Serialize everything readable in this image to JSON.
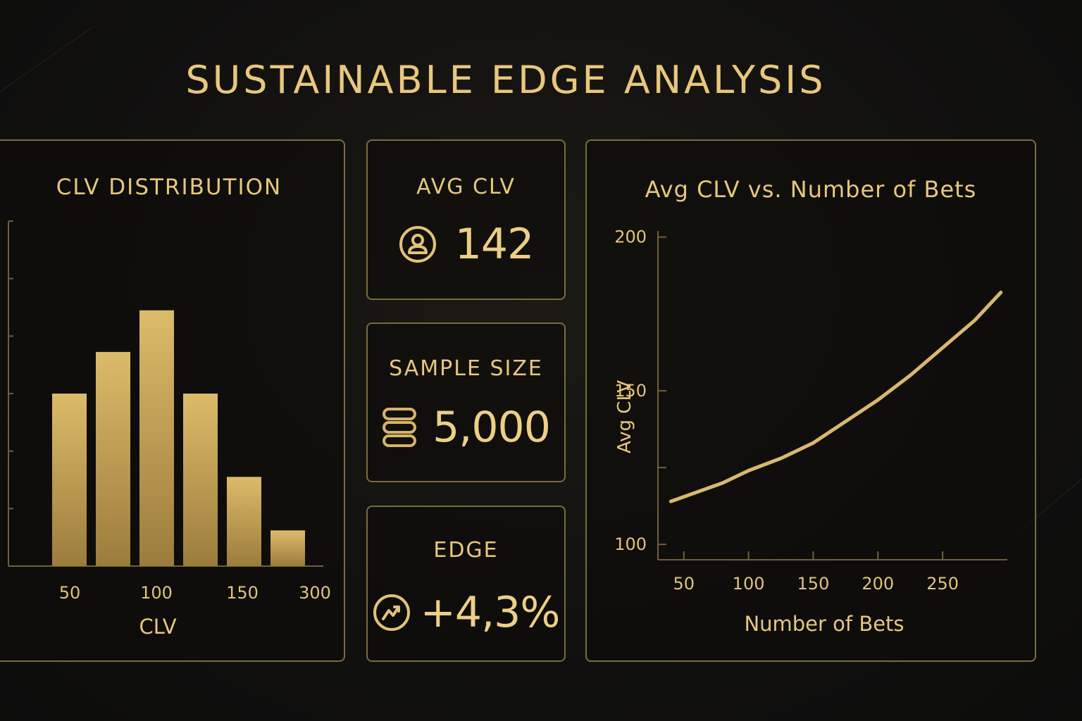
{
  "page": {
    "title": "SUSTAINABLE EDGE ANALYSIS"
  },
  "colors": {
    "gold": "#e8c77c",
    "bar_top": "#dcbb6a",
    "bar_bottom": "#9c7c3c",
    "border": "#7d6a3e",
    "background": "#121110"
  },
  "stats": [
    {
      "label": "AVG CLV",
      "value": "142",
      "icon": "user-icon"
    },
    {
      "label": "SAMPLE SIZE",
      "value": "5,000",
      "icon": "coin-stack-icon"
    },
    {
      "label": "EDGE",
      "value": "+4,3%",
      "icon": "trend-arrow-icon"
    }
  ],
  "chart_data": [
    {
      "type": "bar",
      "title": "CLV DISTRIBUTION",
      "xlabel": "CLV",
      "ylabel": "",
      "x_tick_labels": [
        "50",
        "100",
        "150",
        "300"
      ],
      "values": [
        2.9,
        3.6,
        4.3,
        2.9,
        1.5,
        0.6
      ],
      "ylim": [
        0,
        5.8
      ],
      "y_tick_count": 6,
      "grid": false,
      "legend": "none"
    },
    {
      "type": "line",
      "title": "Avg CLV vs. Number of Bets",
      "xlabel": "Number of Bets",
      "ylabel": "Avg CLV",
      "x_ticks": [
        50,
        100,
        150,
        200,
        250
      ],
      "y_ticks": [
        100,
        150,
        200
      ],
      "xlim": [
        30,
        300
      ],
      "ylim": [
        95,
        202
      ],
      "series": [
        {
          "x": [
            40,
            60,
            80,
            100,
            125,
            150,
            175,
            200,
            225,
            250,
            275,
            295
          ],
          "y": [
            114,
            117,
            120,
            124,
            128,
            133,
            140,
            147,
            155,
            164,
            173,
            182
          ]
        }
      ],
      "grid": false,
      "legend": "none"
    }
  ]
}
